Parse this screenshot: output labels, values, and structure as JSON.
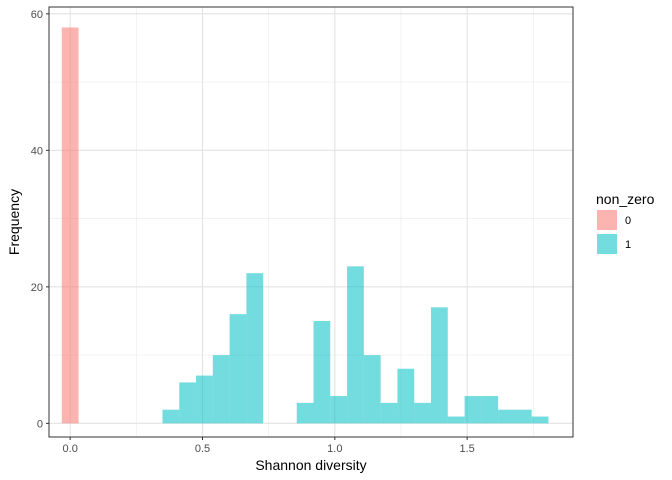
{
  "chart_data": {
    "type": "bar",
    "subtype": "stacked-histogram",
    "xlabel": "Shannon diversity",
    "ylabel": "Frequency",
    "xlim": [
      -0.08,
      1.9
    ],
    "ylim": [
      -2,
      61
    ],
    "xticks": [
      0.0,
      0.5,
      1.0,
      1.5
    ],
    "xtick_labels": [
      "0.0",
      "0.5",
      "1.0",
      "1.5"
    ],
    "yticks": [
      0,
      20,
      40,
      60
    ],
    "ytick_labels": [
      "0",
      "20",
      "40",
      "60"
    ],
    "grid": true,
    "legend": {
      "title": "non_zero",
      "position": "right"
    },
    "bin_width": 0.0634,
    "series": [
      {
        "name": "0",
        "color": "#F8766D",
        "bins": [
          {
            "x": 0.0,
            "count": 58
          }
        ]
      },
      {
        "name": "1",
        "color": "#00BFC4",
        "bins": [
          {
            "x": 0.3805,
            "count": 2
          },
          {
            "x": 0.4439,
            "count": 6
          },
          {
            "x": 0.5073,
            "count": 7
          },
          {
            "x": 0.5707,
            "count": 10
          },
          {
            "x": 0.6341,
            "count": 16
          },
          {
            "x": 0.6976,
            "count": 22
          },
          {
            "x": 0.8878,
            "count": 3
          },
          {
            "x": 0.9512,
            "count": 15
          },
          {
            "x": 1.0146,
            "count": 4
          },
          {
            "x": 1.078,
            "count": 23
          },
          {
            "x": 1.1415,
            "count": 10
          },
          {
            "x": 1.2049,
            "count": 3
          },
          {
            "x": 1.2683,
            "count": 8
          },
          {
            "x": 1.3317,
            "count": 3
          },
          {
            "x": 1.3951,
            "count": 17
          },
          {
            "x": 1.4585,
            "count": 1
          },
          {
            "x": 1.522,
            "count": 4
          },
          {
            "x": 1.5854,
            "count": 4
          },
          {
            "x": 1.6488,
            "count": 2
          },
          {
            "x": 1.7122,
            "count": 2
          },
          {
            "x": 1.7756,
            "count": 1
          }
        ]
      }
    ]
  }
}
